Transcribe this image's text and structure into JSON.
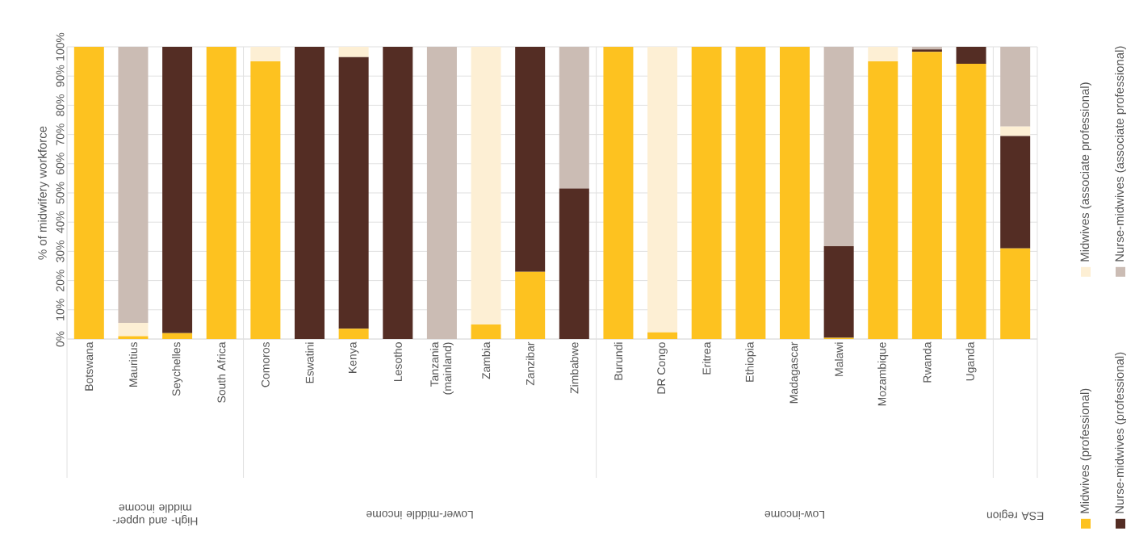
{
  "chart_data": {
    "type": "bar",
    "stacked": true,
    "ylabel": "% of midwifery workforce",
    "categories": [
      "Botswana",
      "Mauritius",
      "Seychelles",
      "South Africa",
      "Comoros",
      "Eswatini",
      "Kenya",
      "Lesotho",
      "Tanzania (mainland)",
      "Zambia",
      "Zanzibar",
      "Zimbabwe",
      "Burundi",
      "DR Congo",
      "Eritrea",
      "Ethiopia",
      "Madagascar",
      "Malawi",
      "Mozambique",
      "Rwanda",
      "Uganda",
      null
    ],
    "series": [
      {
        "name": "Midwives (professional)",
        "color": "#fdc220",
        "values": [
          100,
          1,
          2,
          100,
          95,
          0,
          3.5,
          0,
          0,
          5,
          23,
          0,
          100,
          2.3,
          100,
          100,
          100,
          0.4,
          95,
          98.3,
          94.2,
          31
        ]
      },
      {
        "name": "Nurse-midwives (professional)",
        "color": "#542d24",
        "values": [
          0,
          0,
          98,
          0,
          0,
          100,
          93,
          100,
          0,
          0,
          77,
          51.5,
          0,
          0,
          0,
          0,
          0,
          31.4,
          0,
          0.8,
          5.8,
          38.5
        ]
      },
      {
        "name": "Midwives (associate professional)",
        "color": "#fdefd4",
        "values": [
          0,
          4.5,
          0,
          0,
          5,
          0,
          3.5,
          0,
          0,
          95,
          0,
          0,
          0,
          97.7,
          0,
          0,
          0,
          0,
          5,
          0,
          0,
          3.2
        ]
      },
      {
        "name": "Nurse-midwives (associate professional)",
        "color": "#cbbcb4",
        "values": [
          0,
          94.5,
          0,
          0,
          0,
          0,
          0,
          0,
          100,
          0,
          0,
          48.5,
          0,
          0,
          0,
          0,
          0,
          68.2,
          0,
          0.9,
          0,
          27.3
        ]
      }
    ],
    "ylim": [
      0,
      100
    ],
    "yticks": [
      {
        "value": 0,
        "label": "0%"
      },
      {
        "value": 10,
        "label": "10%"
      },
      {
        "value": 20,
        "label": "20%"
      },
      {
        "value": 30,
        "label": "30%"
      },
      {
        "value": 40,
        "label": "40%"
      },
      {
        "value": 50,
        "label": "50%"
      },
      {
        "value": 60,
        "label": "60%"
      },
      {
        "value": 70,
        "label": "70%"
      },
      {
        "value": 80,
        "label": "80%"
      },
      {
        "value": 90,
        "label": "90%"
      },
      {
        "value": 100,
        "label": "100%"
      }
    ],
    "grid": "y",
    "legend": "right",
    "annotations": [
      "High- and upper-middle income",
      "Lower-middle income",
      "Low-income",
      "ESA region"
    ]
  }
}
